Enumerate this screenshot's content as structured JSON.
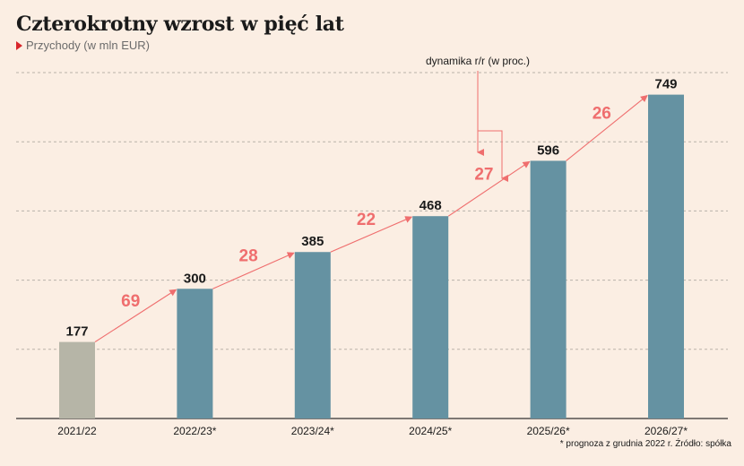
{
  "title": "Czterokrotny wzrost w pięć lat",
  "subtitle": "Przychody (w mln EUR)",
  "footnote": "* prognoza z grudnia 2022 r. Źródło: spółka",
  "colors": {
    "actual": "#b6b5a7",
    "forecast": "#6592a2",
    "growth": "#ef6e6e",
    "background": "#fbeee3"
  },
  "chart_data": {
    "type": "bar",
    "title": "Czterokrotny wzrost w pięć lat",
    "ylabel": "Przychody (w mln EUR)",
    "categories": [
      "2021/22",
      "2022/23*",
      "2023/24*",
      "2024/25*",
      "2025/26*",
      "2026/27*"
    ],
    "values": [
      177,
      300,
      385,
      468,
      596,
      749
    ],
    "forecast": [
      false,
      true,
      true,
      true,
      true,
      true
    ],
    "growth_pct": [
      69,
      28,
      22,
      27,
      26
    ],
    "growth_annotation": "dynamika r/r (w proc.)",
    "ylim": [
      0,
      800
    ],
    "grid": true
  }
}
